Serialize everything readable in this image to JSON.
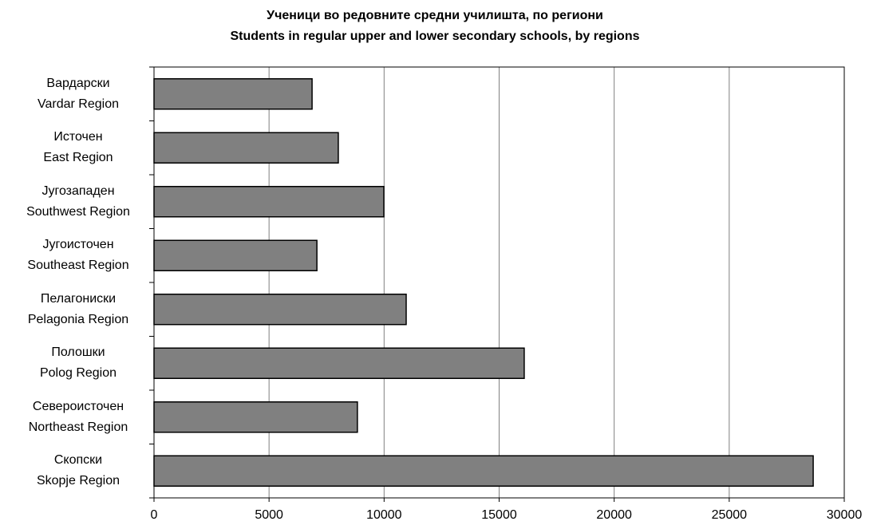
{
  "chart_data": {
    "type": "bar",
    "orientation": "horizontal",
    "title": "Ученици во редовните средни  училишта, по региони",
    "subtitle": "Students in regular upper and lower secondary schools, by regions",
    "categories": [
      "Вардарски\nVardar Region",
      "Источен\nEast Region",
      "Југозападен\nSouthwest Region",
      "Југоисточен\nSoutheast Region",
      "Пелагониски\nPelagonia Region",
      "Полошки\nPolog Region",
      "Североисточен\nNortheast Region",
      "Скопски\nSkopje Region"
    ],
    "values": [
      6870,
      8010,
      9990,
      7080,
      10960,
      16090,
      8840,
      28650
    ],
    "color": "#808080",
    "xlim": [
      0,
      30000
    ],
    "xticks": [
      0,
      5000,
      10000,
      15000,
      20000,
      25000,
      30000
    ],
    "grid": true
  }
}
